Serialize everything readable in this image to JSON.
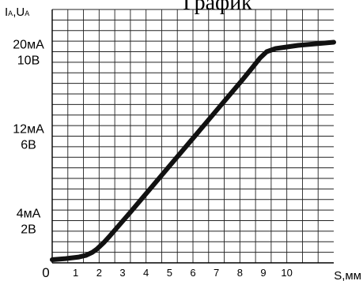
{
  "chart_data": {
    "type": "line",
    "title": "График",
    "ylabel": "IA,UA",
    "ylabel_parts": {
      "i": "I",
      "i_sub": "A",
      "sep": ",",
      "u": "U",
      "u_sub": "A"
    },
    "xlabel": "S,мм",
    "origin_label": "0",
    "xlim": [
      0,
      12.6
    ],
    "ylim": [
      0,
      24
    ],
    "grid": true,
    "x_ticks": [
      {
        "value": 1,
        "label": "1"
      },
      {
        "value": 2,
        "label": "2"
      },
      {
        "value": 3,
        "label": "3"
      },
      {
        "value": 4,
        "label": "4"
      },
      {
        "value": 5,
        "label": "5"
      },
      {
        "value": 6,
        "label": "6"
      },
      {
        "value": 7,
        "label": "7"
      },
      {
        "value": 8,
        "label": "8"
      },
      {
        "value": 9,
        "label": "9"
      },
      {
        "value": 10,
        "label": "10"
      }
    ],
    "y_ticks": [
      {
        "value": 4,
        "label_current": "4мА",
        "label_voltage": "2В"
      },
      {
        "value": 12,
        "label_current": "12мА",
        "label_voltage": "6В"
      },
      {
        "value": 20,
        "label_current": "20мА",
        "label_voltage": "10В"
      }
    ],
    "series": [
      {
        "color": "#111111",
        "x": [
          0,
          0.6,
          1.2,
          1.5,
          1.8,
          2.0,
          2.3,
          2.6,
          3.5,
          4.5,
          5.5,
          6.5,
          7.5,
          8.5,
          9.0,
          9.3,
          9.6,
          10.0,
          11.0,
          12.6
        ],
        "y": [
          0.3,
          0.4,
          0.55,
          0.7,
          1.0,
          1.3,
          1.9,
          2.6,
          4.8,
          7.3,
          9.8,
          12.3,
          14.8,
          17.3,
          18.6,
          19.4,
          20.0,
          20.3,
          20.6,
          20.9
        ]
      }
    ]
  }
}
